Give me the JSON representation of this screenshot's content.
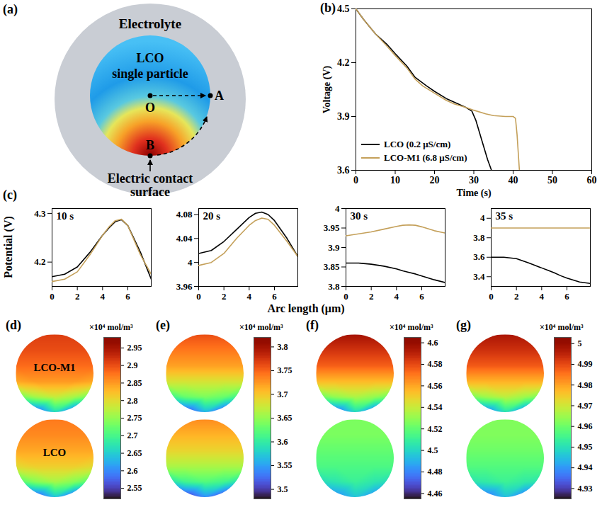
{
  "diagram": {
    "panel": "(a)",
    "electrolyte": "Electrolyte",
    "particle": [
      "LCO",
      "single particle"
    ],
    "center": "O",
    "edge_point": "A",
    "contact_point": "B",
    "contact": [
      "Electric contact",
      "surface"
    ]
  },
  "chart_data": [
    {
      "panel": "(b)",
      "type": "line",
      "xlabel": "Time (s)",
      "ylabel": "Voltage (V)",
      "xlim": [
        0,
        60
      ],
      "xticks": [
        0,
        10,
        20,
        30,
        40,
        50,
        60
      ],
      "ylim": [
        3.6,
        4.5
      ],
      "yticks": [
        3.6,
        3.9,
        4.2,
        4.5
      ],
      "legend": "lower left",
      "series": [
        {
          "name": "LCO (0.2 μS/cm)",
          "color": "#000000",
          "x": [
            0,
            2,
            5,
            8,
            10,
            13,
            15,
            18,
            20,
            23,
            25,
            28,
            29.5,
            30.5,
            32,
            33.5,
            34.5
          ],
          "values": [
            4.5,
            4.44,
            4.36,
            4.3,
            4.25,
            4.18,
            4.12,
            4.07,
            4.04,
            4.0,
            3.98,
            3.95,
            3.93,
            3.88,
            3.77,
            3.66,
            3.6
          ]
        },
        {
          "name": "LCO-M1 (6.8 μS/cm)",
          "color": "#c4a05a",
          "x": [
            0,
            2,
            5,
            8,
            10,
            13,
            15,
            17,
            20,
            23,
            25,
            28,
            30,
            33,
            35,
            38,
            40,
            40.6,
            41,
            41.3,
            41.6
          ],
          "values": [
            4.5,
            4.44,
            4.36,
            4.29,
            4.24,
            4.17,
            4.11,
            4.07,
            4.03,
            3.99,
            3.97,
            3.95,
            3.935,
            3.915,
            3.905,
            3.9,
            3.9,
            3.89,
            3.8,
            3.7,
            3.6
          ]
        }
      ]
    },
    {
      "panel": "(c)",
      "type": "line",
      "xlabel": "Arc length (μm)",
      "ylabel": "Potential (V)",
      "xlim": [
        0,
        7.85
      ],
      "xticks": [
        0,
        2,
        4,
        6
      ],
      "x": [
        0,
        1,
        2,
        3,
        4,
        4.5,
        5,
        5.5,
        6,
        7,
        7.85
      ],
      "subplots": [
        {
          "title": "10 s",
          "ylim": [
            4.15,
            4.31
          ],
          "yticks": [
            4.2,
            4.3
          ],
          "series": [
            {
              "color": "#000000",
              "values": [
                4.17,
                4.175,
                4.19,
                4.22,
                4.255,
                4.27,
                4.283,
                4.287,
                4.275,
                4.22,
                4.165
              ]
            },
            {
              "color": "#c4a05a",
              "values": [
                4.16,
                4.165,
                4.18,
                4.215,
                4.255,
                4.272,
                4.285,
                4.288,
                4.275,
                4.215,
                4.175
              ]
            }
          ]
        },
        {
          "title": "20 s",
          "ylim": [
            3.96,
            4.09
          ],
          "yticks": [
            3.96,
            4,
            4.04,
            4.08
          ],
          "series": [
            {
              "color": "#000000",
              "values": [
                4.015,
                4.02,
                4.035,
                4.055,
                4.075,
                4.082,
                4.084,
                4.08,
                4.07,
                4.04,
                4.01
              ]
            },
            {
              "color": "#c4a05a",
              "values": [
                3.995,
                4.0,
                4.015,
                4.04,
                4.062,
                4.07,
                4.074,
                4.072,
                4.062,
                4.035,
                4.01
              ]
            }
          ]
        },
        {
          "title": "30 s",
          "ylim": [
            3.8,
            4.0
          ],
          "yticks": [
            3.8,
            3.85,
            3.9,
            3.95,
            4
          ],
          "series": [
            {
              "color": "#000000",
              "values": [
                3.86,
                3.86,
                3.857,
                3.852,
                3.845,
                3.84,
                3.836,
                3.832,
                3.827,
                3.817,
                3.81
              ]
            },
            {
              "color": "#c4a05a",
              "values": [
                3.93,
                3.935,
                3.94,
                3.947,
                3.954,
                3.957,
                3.958,
                3.957,
                3.953,
                3.943,
                3.937
              ]
            }
          ]
        },
        {
          "title": "35 s",
          "ylim": [
            3.3,
            4.1
          ],
          "yticks": [
            3.4,
            3.6,
            3.8,
            4
          ],
          "series": [
            {
              "color": "#000000",
              "values": [
                3.6,
                3.6,
                3.585,
                3.54,
                3.49,
                3.465,
                3.44,
                3.41,
                3.385,
                3.345,
                3.33
              ]
            },
            {
              "color": "#c4a05a",
              "values": [
                3.9,
                3.9,
                3.9,
                3.9,
                3.9,
                3.9,
                3.9,
                3.9,
                3.9,
                3.9,
                3.9
              ]
            }
          ]
        }
      ]
    },
    {
      "panel": "(d)",
      "type": "heatmap",
      "colorbar_label": "×10⁴ mol/m³",
      "colorbar_lim": [
        2.52,
        2.98
      ],
      "colorbar_ticks": [
        2.55,
        2.6,
        2.65,
        2.7,
        2.75,
        2.8,
        2.85,
        2.9,
        2.95
      ],
      "particles": [
        {
          "label": "LCO-M1",
          "cells": [
            [
              2.9,
              2.91,
              2.91,
              2.91,
              2.9
            ],
            [
              2.9,
              2.9,
              2.9,
              2.9,
              2.9
            ],
            [
              2.88,
              2.88,
              2.88,
              2.88,
              2.88
            ],
            [
              2.84,
              2.85,
              2.85,
              2.85,
              2.84
            ],
            [
              2.72,
              2.76,
              2.78,
              2.76,
              2.72
            ],
            [
              2.6,
              2.56,
              2.66,
              2.56,
              2.6
            ]
          ]
        },
        {
          "label": "LCO",
          "cells": [
            [
              2.86,
              2.87,
              2.87,
              2.87,
              2.86
            ],
            [
              2.86,
              2.86,
              2.86,
              2.86,
              2.86
            ],
            [
              2.84,
              2.84,
              2.84,
              2.84,
              2.84
            ],
            [
              2.8,
              2.81,
              2.81,
              2.81,
              2.8
            ],
            [
              2.7,
              2.74,
              2.76,
              2.74,
              2.7
            ],
            [
              2.6,
              2.55,
              2.64,
              2.55,
              2.6
            ]
          ]
        }
      ]
    },
    {
      "panel": "(e)",
      "type": "heatmap",
      "colorbar_label": "×10⁴ mol/m³",
      "colorbar_lim": [
        3.48,
        3.82
      ],
      "colorbar_ticks": [
        3.5,
        3.55,
        3.6,
        3.65,
        3.7,
        3.75,
        3.8
      ],
      "particles": [
        {
          "cells": [
            [
              3.75,
              3.76,
              3.76,
              3.76,
              3.75
            ],
            [
              3.74,
              3.74,
              3.74,
              3.74,
              3.74
            ],
            [
              3.72,
              3.72,
              3.72,
              3.72,
              3.72
            ],
            [
              3.68,
              3.68,
              3.68,
              3.68,
              3.68
            ],
            [
              3.6,
              3.63,
              3.64,
              3.63,
              3.6
            ],
            [
              3.55,
              3.5,
              3.56,
              3.5,
              3.55
            ]
          ]
        },
        {
          "cells": [
            [
              3.72,
              3.73,
              3.73,
              3.73,
              3.72
            ],
            [
              3.71,
              3.71,
              3.71,
              3.71,
              3.71
            ],
            [
              3.69,
              3.69,
              3.69,
              3.69,
              3.69
            ],
            [
              3.66,
              3.66,
              3.66,
              3.66,
              3.66
            ],
            [
              3.58,
              3.61,
              3.62,
              3.61,
              3.58
            ],
            [
              3.53,
              3.49,
              3.54,
              3.49,
              3.53
            ]
          ]
        }
      ]
    },
    {
      "panel": "(f)",
      "type": "heatmap",
      "colorbar_label": "×10⁴ mol/m³",
      "colorbar_lim": [
        4.455,
        4.605
      ],
      "colorbar_ticks": [
        4.46,
        4.48,
        4.5,
        4.52,
        4.54,
        4.56,
        4.58,
        4.6
      ],
      "particles": [
        {
          "cells": [
            [
              4.59,
              4.595,
              4.595,
              4.595,
              4.59
            ],
            [
              4.585,
              4.585,
              4.585,
              4.585,
              4.585
            ],
            [
              4.575,
              4.575,
              4.575,
              4.575,
              4.575
            ],
            [
              4.555,
              4.555,
              4.555,
              4.555,
              4.555
            ],
            [
              4.52,
              4.53,
              4.535,
              4.53,
              4.52
            ],
            [
              4.49,
              4.47,
              4.5,
              4.47,
              4.49
            ]
          ]
        },
        {
          "cells": [
            [
              4.525,
              4.525,
              4.525,
              4.525,
              4.525
            ],
            [
              4.525,
              4.525,
              4.525,
              4.525,
              4.525
            ],
            [
              4.52,
              4.52,
              4.52,
              4.52,
              4.52
            ],
            [
              4.515,
              4.515,
              4.515,
              4.515,
              4.515
            ],
            [
              4.5,
              4.505,
              4.51,
              4.505,
              4.5
            ],
            [
              4.49,
              4.48,
              4.495,
              4.48,
              4.49
            ]
          ]
        }
      ]
    },
    {
      "panel": "(g)",
      "type": "heatmap",
      "colorbar_label": "×10⁴ mol/m³",
      "colorbar_lim": [
        4.925,
        5.003
      ],
      "colorbar_ticks": [
        4.93,
        4.94,
        4.95,
        4.96,
        4.97,
        4.98,
        4.99,
        5
      ],
      "particles": [
        {
          "cells": [
            [
              4.995,
              4.997,
              4.997,
              4.997,
              4.995
            ],
            [
              4.993,
              4.993,
              4.993,
              4.993,
              4.993
            ],
            [
              4.988,
              4.988,
              4.988,
              4.988,
              4.988
            ],
            [
              4.978,
              4.978,
              4.978,
              4.978,
              4.978
            ],
            [
              4.96,
              4.965,
              4.968,
              4.965,
              4.96
            ],
            [
              4.945,
              4.935,
              4.95,
              4.935,
              4.945
            ]
          ]
        },
        {
          "cells": [
            [
              4.962,
              4.962,
              4.962,
              4.962,
              4.962
            ],
            [
              4.962,
              4.962,
              4.962,
              4.962,
              4.962
            ],
            [
              4.96,
              4.96,
              4.96,
              4.96,
              4.96
            ],
            [
              4.957,
              4.957,
              4.957,
              4.957,
              4.957
            ],
            [
              4.95,
              4.952,
              4.954,
              4.952,
              4.95
            ],
            [
              4.943,
              4.935,
              4.945,
              4.935,
              4.943
            ]
          ]
        }
      ]
    }
  ]
}
